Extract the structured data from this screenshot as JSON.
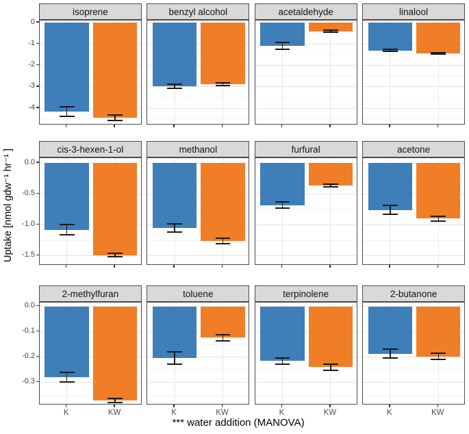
{
  "figure_title": "VOC uptake faceted bar chart",
  "chart_data": {
    "type": "bar",
    "categories": [
      "K",
      "KW"
    ],
    "bar_colors": {
      "K": "#3E7EB9",
      "KW": "#F07E26"
    },
    "error_bar_color": "#1a1a1a",
    "xlabel": "*** water addition (MANOVA)",
    "ylabel": "Uptake [nmol gdw⁻¹ hr⁻¹ ]",
    "grid": true,
    "legend": "none",
    "facet_rows": [
      {
        "ylim": [
          0.1,
          -4.8
        ],
        "ticks": [
          0,
          -1,
          -2,
          -3,
          -4
        ],
        "tick_labels": [
          "0",
          "-1",
          "-2",
          "-3",
          "-4"
        ],
        "minor_step": 0.5,
        "facets": [
          {
            "title": "isoprene",
            "values": [
              -4.16,
              -4.45
            ],
            "errors": [
              0.22,
              0.13
            ]
          },
          {
            "title": "benzyl alcohol",
            "values": [
              -2.97,
              -2.88
            ],
            "errors": [
              0.09,
              0.05
            ]
          },
          {
            "title": "acetaldehyde",
            "values": [
              -1.08,
              -0.4
            ],
            "errors": [
              0.15,
              0.06
            ]
          },
          {
            "title": "linalool",
            "values": [
              -1.3,
              -1.44
            ],
            "errors": [
              0.05,
              0.04
            ]
          }
        ]
      },
      {
        "ylim": [
          0.08,
          -1.66
        ],
        "ticks": [
          0,
          -0.5,
          -1,
          -1.5
        ],
        "tick_labels": [
          "0.0",
          "-0.5",
          "-1.0",
          "-1.5"
        ],
        "minor_step": 0.25,
        "facets": [
          {
            "title": "cis-3-hexen-1-ol",
            "values": [
              -1.08,
              -1.49
            ],
            "errors": [
              0.08,
              0.03
            ]
          },
          {
            "title": "methanol",
            "values": [
              -1.05,
              -1.26
            ],
            "errors": [
              0.07,
              0.04
            ]
          },
          {
            "title": "furfural",
            "values": [
              -0.68,
              -0.36
            ],
            "errors": [
              0.05,
              0.02
            ]
          },
          {
            "title": "acetone",
            "values": [
              -0.76,
              -0.9
            ],
            "errors": [
              0.07,
              0.04
            ]
          }
        ]
      },
      {
        "ylim": [
          0.015,
          -0.39
        ],
        "ticks": [
          0,
          -0.1,
          -0.2,
          -0.3
        ],
        "tick_labels": [
          "0.0",
          "-0.1",
          "-0.2",
          "-0.3"
        ],
        "minor_step": 0.05,
        "facets": [
          {
            "title": "2-methylfuran",
            "values": [
              -0.28,
              -0.37
            ],
            "errors": [
              0.019,
              0.008
            ]
          },
          {
            "title": "toluene",
            "values": [
              -0.203,
              -0.124
            ],
            "errors": [
              0.024,
              0.011
            ]
          },
          {
            "title": "terpinolene",
            "values": [
              -0.215,
              -0.24
            ],
            "errors": [
              0.012,
              0.011
            ]
          },
          {
            "title": "2-butanone",
            "values": [
              -0.187,
              -0.197
            ],
            "errors": [
              0.018,
              0.011
            ]
          }
        ]
      }
    ]
  }
}
